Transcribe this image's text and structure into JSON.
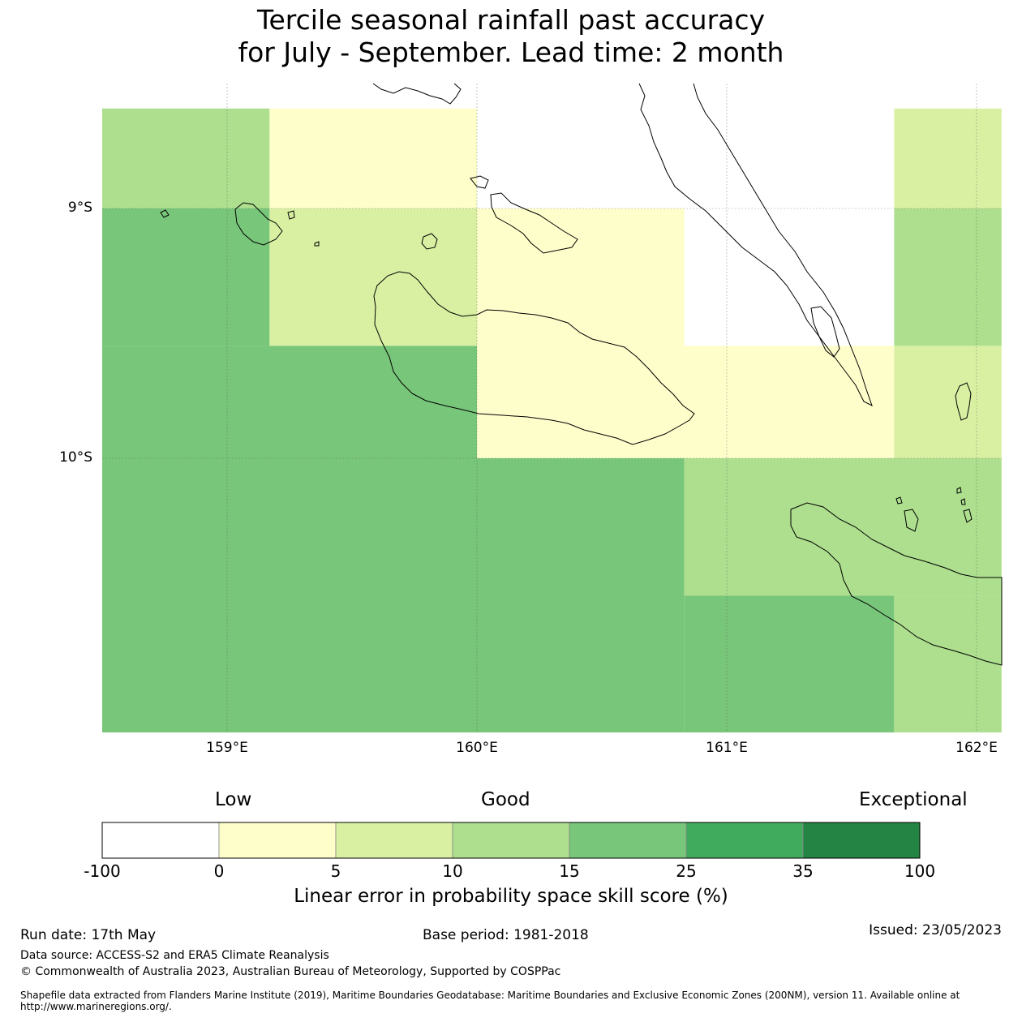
{
  "title": {
    "line1": "Tercile seasonal rainfall past accuracy",
    "line2": "for July - September. Lead time: 2 month"
  },
  "map": {
    "lat_labels": [
      "9°S",
      "10°S"
    ],
    "lon_labels": [
      "159°E",
      "160°E",
      "161°E",
      "162°E"
    ],
    "cells": [
      {
        "lon_range": [
          158.5,
          159.17
        ],
        "lat_range": [
          -8.6,
          -9.0
        ],
        "skill_class": "10-15",
        "color": "#addf8e"
      },
      {
        "lon_range": [
          159.17,
          160.0
        ],
        "lat_range": [
          -8.6,
          -9.0
        ],
        "skill_class": "0-5",
        "color": "#fefecb"
      },
      {
        "lon_range": [
          160.0,
          160.83
        ],
        "lat_range": [
          -8.6,
          -9.0
        ],
        "skill_class": "<0",
        "color": "#ffffff"
      },
      {
        "lon_range": [
          160.83,
          161.67
        ],
        "lat_range": [
          -8.6,
          -9.0
        ],
        "skill_class": "<0",
        "color": "#ffffff"
      },
      {
        "lon_range": [
          161.67,
          162.1
        ],
        "lat_range": [
          -8.6,
          -9.0
        ],
        "skill_class": "5-10",
        "color": "#d9f0a2"
      },
      {
        "lon_range": [
          158.5,
          159.17
        ],
        "lat_range": [
          -9.0,
          -9.55
        ],
        "skill_class": "15-25",
        "color": "#78c67a"
      },
      {
        "lon_range": [
          159.17,
          160.0
        ],
        "lat_range": [
          -9.0,
          -9.55
        ],
        "skill_class": "5-10",
        "color": "#d9f0a2"
      },
      {
        "lon_range": [
          160.0,
          160.83
        ],
        "lat_range": [
          -9.0,
          -9.55
        ],
        "skill_class": "0-5",
        "color": "#fefecb"
      },
      {
        "lon_range": [
          160.83,
          161.67
        ],
        "lat_range": [
          -9.0,
          -9.55
        ],
        "skill_class": "<0",
        "color": "#ffffff"
      },
      {
        "lon_range": [
          161.67,
          162.1
        ],
        "lat_range": [
          -9.0,
          -9.55
        ],
        "skill_class": "10-15",
        "color": "#addf8e"
      },
      {
        "lon_range": [
          158.5,
          160.0
        ],
        "lat_range": [
          -9.55,
          -10.0
        ],
        "skill_class": "15-25",
        "color": "#78c67a"
      },
      {
        "lon_range": [
          160.0,
          161.67
        ],
        "lat_range": [
          -9.55,
          -10.0
        ],
        "skill_class": "0-5",
        "color": "#fefecb"
      },
      {
        "lon_range": [
          161.67,
          162.1
        ],
        "lat_range": [
          -9.55,
          -10.0
        ],
        "skill_class": "5-10",
        "color": "#d9f0a2"
      },
      {
        "lon_range": [
          158.5,
          160.83
        ],
        "lat_range": [
          -10.0,
          -11.1
        ],
        "skill_class": "15-25",
        "color": "#78c67a"
      },
      {
        "lon_range": [
          160.83,
          162.1
        ],
        "lat_range": [
          -10.0,
          -10.55
        ],
        "skill_class": "10-15",
        "color": "#addf8e"
      },
      {
        "lon_range": [
          160.83,
          161.67
        ],
        "lat_range": [
          -10.55,
          -11.1
        ],
        "skill_class": "15-25",
        "color": "#78c67a"
      },
      {
        "lon_range": [
          161.67,
          162.1
        ],
        "lat_range": [
          -10.55,
          -11.1
        ],
        "skill_class": "10-15",
        "color": "#addf8e"
      }
    ]
  },
  "colorbar": {
    "category_labels": [
      "Low",
      "Good",
      "Exceptional"
    ],
    "bins": [
      {
        "from": "-100",
        "to": "0",
        "color": "#ffffff"
      },
      {
        "from": "0",
        "to": "5",
        "color": "#fefecb"
      },
      {
        "from": "5",
        "to": "10",
        "color": "#d9f0a2"
      },
      {
        "from": "10",
        "to": "15",
        "color": "#addf8e"
      },
      {
        "from": "15",
        "to": "25",
        "color": "#78c67a"
      },
      {
        "from": "25",
        "to": "35",
        "color": "#41ab5d"
      },
      {
        "from": "35",
        "to": "100",
        "color": "#238443"
      }
    ],
    "ticks": [
      "-100",
      "0",
      "5",
      "10",
      "15",
      "25",
      "35",
      "100"
    ],
    "label": "Linear error in probability space skill score (%)"
  },
  "footer": {
    "run_date": "Run date: 17th May",
    "base_period": "Base period: 1981-2018",
    "issued": "Issued: 23/05/2023",
    "data_source": "Data source: ACCESS-S2 and ERA5 Climate Reanalysis",
    "copyright": "© Commonwealth of Australia 2023, Australian Bureau of Meteorology, Supported by COSPPac",
    "shapefile": "Shapefile data extracted from Flanders Marine Institute (2019), Maritime Boundaries Geodatabase: Maritime Boundaries and Exclusive Economic Zones (200NM), version 11. Available online at http://www.marineregions.org/."
  }
}
